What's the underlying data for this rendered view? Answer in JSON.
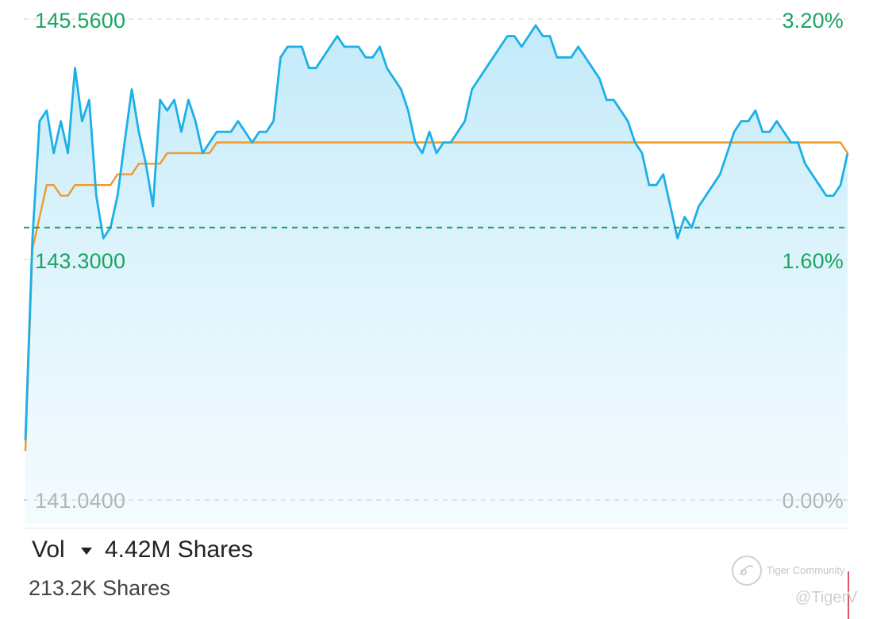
{
  "chart_data": {
    "type": "line",
    "title": "",
    "xlabel": "",
    "ylabel": "",
    "y_left_ticks": [
      "145.5600",
      "143.3000",
      "141.0400"
    ],
    "y_right_ticks": [
      "3.20%",
      "1.60%",
      "0.00%"
    ],
    "ylim": [
      141.04,
      145.56
    ],
    "reference_price": 143.6,
    "grid": true,
    "series": [
      {
        "role": "price",
        "color": "#1cb0e6",
        "values": [
          141.6,
          143.5,
          144.6,
          144.7,
          144.3,
          144.6,
          144.3,
          145.1,
          144.6,
          144.8,
          143.9,
          143.5,
          143.6,
          143.9,
          144.4,
          144.9,
          144.5,
          144.2,
          143.8,
          144.8,
          144.7,
          144.8,
          144.5,
          144.8,
          144.6,
          144.3,
          144.4,
          144.5,
          144.5,
          144.5,
          144.6,
          144.5,
          144.4,
          144.5,
          144.5,
          144.6,
          145.2,
          145.3,
          145.3,
          145.3,
          145.1,
          145.1,
          145.2,
          145.3,
          145.4,
          145.3,
          145.3,
          145.3,
          145.2,
          145.2,
          145.3,
          145.1,
          145.0,
          144.9,
          144.7,
          144.4,
          144.3,
          144.5,
          144.3,
          144.4,
          144.4,
          144.5,
          144.6,
          144.9,
          145.0,
          145.1,
          145.2,
          145.3,
          145.4,
          145.4,
          145.3,
          145.4,
          145.5,
          145.4,
          145.4,
          145.2,
          145.2,
          145.2,
          145.3,
          145.2,
          145.1,
          145.0,
          144.8,
          144.8,
          144.7,
          144.6,
          144.4,
          144.3,
          144.0,
          144.0,
          144.1,
          143.8,
          143.5,
          143.7,
          143.6,
          143.8,
          143.9,
          144.0,
          144.1,
          144.3,
          144.5,
          144.6,
          144.6,
          144.7,
          144.5,
          144.5,
          144.6,
          144.5,
          144.4,
          144.4,
          144.2,
          144.1,
          144.0,
          143.9,
          143.9,
          144.0,
          144.3
        ]
      },
      {
        "role": "average",
        "color": "#ef9a2c",
        "values": [
          141.5,
          143.4,
          143.7,
          144.0,
          144.0,
          143.9,
          143.9,
          144.0,
          144.0,
          144.0,
          144.0,
          144.0,
          144.0,
          144.1,
          144.1,
          144.1,
          144.2,
          144.2,
          144.2,
          144.2,
          144.3,
          144.3,
          144.3,
          144.3,
          144.3,
          144.3,
          144.3,
          144.4,
          144.4,
          144.4,
          144.4,
          144.4,
          144.4,
          144.4,
          144.4,
          144.4,
          144.4,
          144.4,
          144.4,
          144.4,
          144.4,
          144.4,
          144.4,
          144.4,
          144.4,
          144.4,
          144.4,
          144.4,
          144.4,
          144.4,
          144.4,
          144.4,
          144.4,
          144.4,
          144.4,
          144.4,
          144.4,
          144.4,
          144.4,
          144.4,
          144.4,
          144.4,
          144.4,
          144.4,
          144.4,
          144.4,
          144.4,
          144.4,
          144.4,
          144.4,
          144.4,
          144.4,
          144.4,
          144.4,
          144.4,
          144.4,
          144.4,
          144.4,
          144.4,
          144.4,
          144.4,
          144.4,
          144.4,
          144.4,
          144.4,
          144.4,
          144.4,
          144.4,
          144.4,
          144.4,
          144.4,
          144.4,
          144.4,
          144.4,
          144.4,
          144.4,
          144.4,
          144.4,
          144.4,
          144.4,
          144.4,
          144.4,
          144.4,
          144.4,
          144.4,
          144.4,
          144.4,
          144.4,
          144.4,
          144.4,
          144.4,
          144.4,
          144.4,
          144.4,
          144.4,
          144.4,
          144.3
        ]
      }
    ]
  },
  "volume": {
    "label": "Vol",
    "total": "4.42M Shares",
    "bar_label": "213.2K Shares"
  },
  "watermark": {
    "brand": "Tiger Community",
    "handle": "@TigerV"
  },
  "colors": {
    "up": "#1aa560",
    "price_line": "#1cb0e6",
    "average_line": "#ef9a2c",
    "reference_line": "#1aa560",
    "muted": "#b5b5b5"
  }
}
